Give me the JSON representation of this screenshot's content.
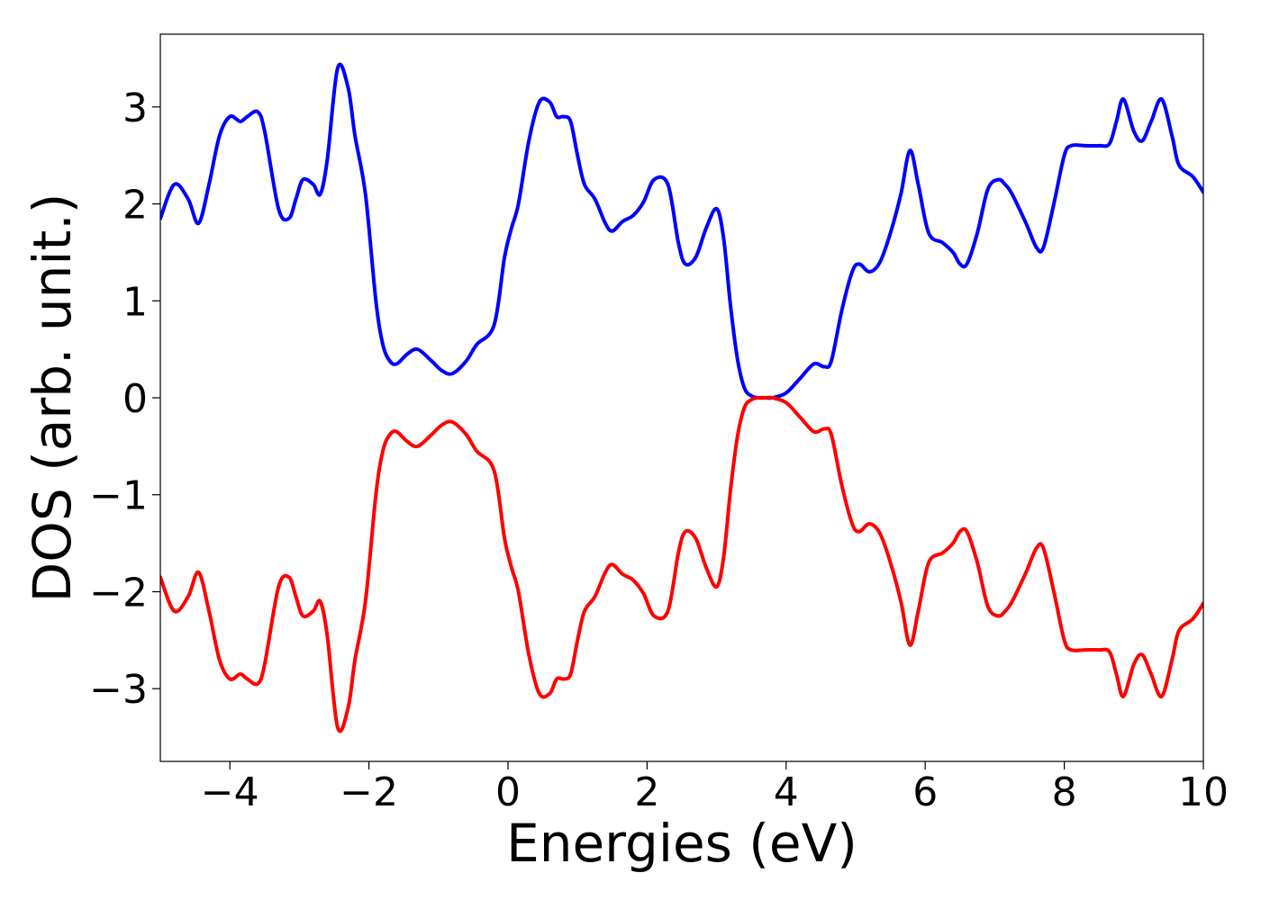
{
  "chart_data": {
    "type": "line",
    "title": "",
    "xlabel": "Energies (eV)",
    "ylabel": "DOS (arb. unit.)",
    "xlim": [
      -5,
      10
    ],
    "ylim": [
      -3.75,
      3.75
    ],
    "x_ticks": [
      -4,
      -2,
      0,
      2,
      4,
      6,
      8,
      10
    ],
    "y_ticks": [
      -3,
      -2,
      -1,
      0,
      1,
      2,
      3
    ],
    "x_tick_labels": [
      "−4",
      "−2",
      "0",
      "2",
      "4",
      "6",
      "8",
      "10"
    ],
    "y_tick_labels": [
      "−3",
      "−2",
      "−1",
      "0",
      "1",
      "2",
      "3"
    ],
    "grid": false,
    "legend": "none",
    "colors": {
      "up": "#0000ff",
      "down": "#ff0000"
    },
    "series": [
      {
        "color": "#0000ff",
        "x": [
          -5.0,
          -4.8,
          -4.6,
          -4.45,
          -4.3,
          -4.15,
          -4.0,
          -3.85,
          -3.75,
          -3.6,
          -3.5,
          -3.3,
          -3.15,
          -3.05,
          -2.95,
          -2.8,
          -2.7,
          -2.6,
          -2.45,
          -2.3,
          -2.2,
          -2.05,
          -1.9,
          -1.8,
          -1.7,
          -1.6,
          -1.45,
          -1.3,
          -1.1,
          -0.95,
          -0.8,
          -0.6,
          -0.45,
          -0.2,
          -0.05,
          0.05,
          0.15,
          0.3,
          0.45,
          0.6,
          0.7,
          0.8,
          0.9,
          1.0,
          1.1,
          1.25,
          1.4,
          1.5,
          1.65,
          1.8,
          1.95,
          2.1,
          2.3,
          2.45,
          2.55,
          2.7,
          2.85,
          3.0,
          3.1,
          3.2,
          3.3,
          3.4,
          3.5,
          3.6,
          3.7,
          3.8,
          4.0,
          4.2,
          4.4,
          4.55,
          4.65,
          4.8,
          4.95,
          5.05,
          5.2,
          5.35,
          5.5,
          5.65,
          5.78,
          5.9,
          6.05,
          6.25,
          6.4,
          6.5,
          6.6,
          6.75,
          6.9,
          7.05,
          7.15,
          7.25,
          7.45,
          7.6,
          7.7,
          7.85,
          8.0,
          8.1,
          8.3,
          8.5,
          8.65,
          8.75,
          8.85,
          9.0,
          9.12,
          9.25,
          9.4,
          9.55,
          9.65,
          9.85,
          10.0
        ],
        "y": [
          1.85,
          2.2,
          2.05,
          1.8,
          2.2,
          2.7,
          2.9,
          2.85,
          2.9,
          2.95,
          2.75,
          1.95,
          1.85,
          2.05,
          2.25,
          2.2,
          2.1,
          2.45,
          3.4,
          3.2,
          2.7,
          2.1,
          1.0,
          0.55,
          0.38,
          0.35,
          0.45,
          0.5,
          0.38,
          0.28,
          0.25,
          0.38,
          0.55,
          0.75,
          1.45,
          1.75,
          2.0,
          2.65,
          3.05,
          3.05,
          2.9,
          2.9,
          2.85,
          2.5,
          2.2,
          2.05,
          1.8,
          1.72,
          1.82,
          1.88,
          2.02,
          2.25,
          2.2,
          1.6,
          1.38,
          1.45,
          1.75,
          1.95,
          1.65,
          0.95,
          0.4,
          0.1,
          0.02,
          0.0,
          0.0,
          0.0,
          0.05,
          0.2,
          0.35,
          0.32,
          0.38,
          0.9,
          1.3,
          1.38,
          1.3,
          1.4,
          1.7,
          2.1,
          2.55,
          2.2,
          1.7,
          1.6,
          1.5,
          1.38,
          1.38,
          1.7,
          2.15,
          2.25,
          2.2,
          2.1,
          1.8,
          1.55,
          1.55,
          2.0,
          2.5,
          2.6,
          2.6,
          2.6,
          2.62,
          2.85,
          3.08,
          2.75,
          2.65,
          2.85,
          3.08,
          2.7,
          2.4,
          2.28,
          2.12
        ]
      },
      {
        "color": "#ff0000",
        "x": [
          -5.0,
          -4.8,
          -4.6,
          -4.45,
          -4.3,
          -4.15,
          -4.0,
          -3.85,
          -3.75,
          -3.6,
          -3.5,
          -3.3,
          -3.15,
          -3.05,
          -2.95,
          -2.8,
          -2.7,
          -2.6,
          -2.45,
          -2.3,
          -2.2,
          -2.05,
          -1.9,
          -1.8,
          -1.7,
          -1.6,
          -1.45,
          -1.3,
          -1.1,
          -0.95,
          -0.8,
          -0.6,
          -0.45,
          -0.2,
          -0.05,
          0.05,
          0.15,
          0.3,
          0.45,
          0.6,
          0.7,
          0.8,
          0.9,
          1.0,
          1.1,
          1.25,
          1.4,
          1.5,
          1.65,
          1.8,
          1.95,
          2.1,
          2.3,
          2.45,
          2.55,
          2.7,
          2.85,
          3.0,
          3.1,
          3.2,
          3.3,
          3.4,
          3.5,
          3.6,
          3.7,
          3.8,
          4.0,
          4.2,
          4.4,
          4.55,
          4.65,
          4.8,
          4.95,
          5.05,
          5.2,
          5.35,
          5.5,
          5.65,
          5.78,
          5.9,
          6.05,
          6.25,
          6.4,
          6.5,
          6.6,
          6.75,
          6.9,
          7.05,
          7.15,
          7.25,
          7.45,
          7.6,
          7.7,
          7.85,
          8.0,
          8.1,
          8.3,
          8.5,
          8.65,
          8.75,
          8.85,
          9.0,
          9.12,
          9.25,
          9.4,
          9.55,
          9.65,
          9.85,
          10.0
        ],
        "y": [
          -1.85,
          -2.2,
          -2.05,
          -1.8,
          -2.2,
          -2.7,
          -2.9,
          -2.85,
          -2.9,
          -2.95,
          -2.75,
          -1.95,
          -1.85,
          -2.05,
          -2.25,
          -2.2,
          -2.1,
          -2.45,
          -3.4,
          -3.2,
          -2.7,
          -2.1,
          -1.0,
          -0.55,
          -0.38,
          -0.35,
          -0.45,
          -0.5,
          -0.38,
          -0.28,
          -0.25,
          -0.38,
          -0.55,
          -0.75,
          -1.45,
          -1.75,
          -2.0,
          -2.65,
          -3.05,
          -3.05,
          -2.9,
          -2.9,
          -2.85,
          -2.5,
          -2.2,
          -2.05,
          -1.8,
          -1.72,
          -1.82,
          -1.88,
          -2.02,
          -2.25,
          -2.2,
          -1.6,
          -1.38,
          -1.45,
          -1.75,
          -1.95,
          -1.65,
          -0.95,
          -0.4,
          -0.1,
          -0.02,
          0.0,
          0.0,
          0.0,
          -0.05,
          -0.2,
          -0.35,
          -0.32,
          -0.38,
          -0.9,
          -1.3,
          -1.38,
          -1.3,
          -1.4,
          -1.7,
          -2.1,
          -2.55,
          -2.2,
          -1.7,
          -1.6,
          -1.5,
          -1.38,
          -1.38,
          -1.7,
          -2.15,
          -2.25,
          -2.2,
          -2.1,
          -1.8,
          -1.55,
          -1.55,
          -2.0,
          -2.5,
          -2.6,
          -2.6,
          -2.6,
          -2.62,
          -2.85,
          -3.08,
          -2.75,
          -2.65,
          -2.85,
          -3.08,
          -2.7,
          -2.4,
          -2.28,
          -2.12
        ]
      }
    ]
  }
}
